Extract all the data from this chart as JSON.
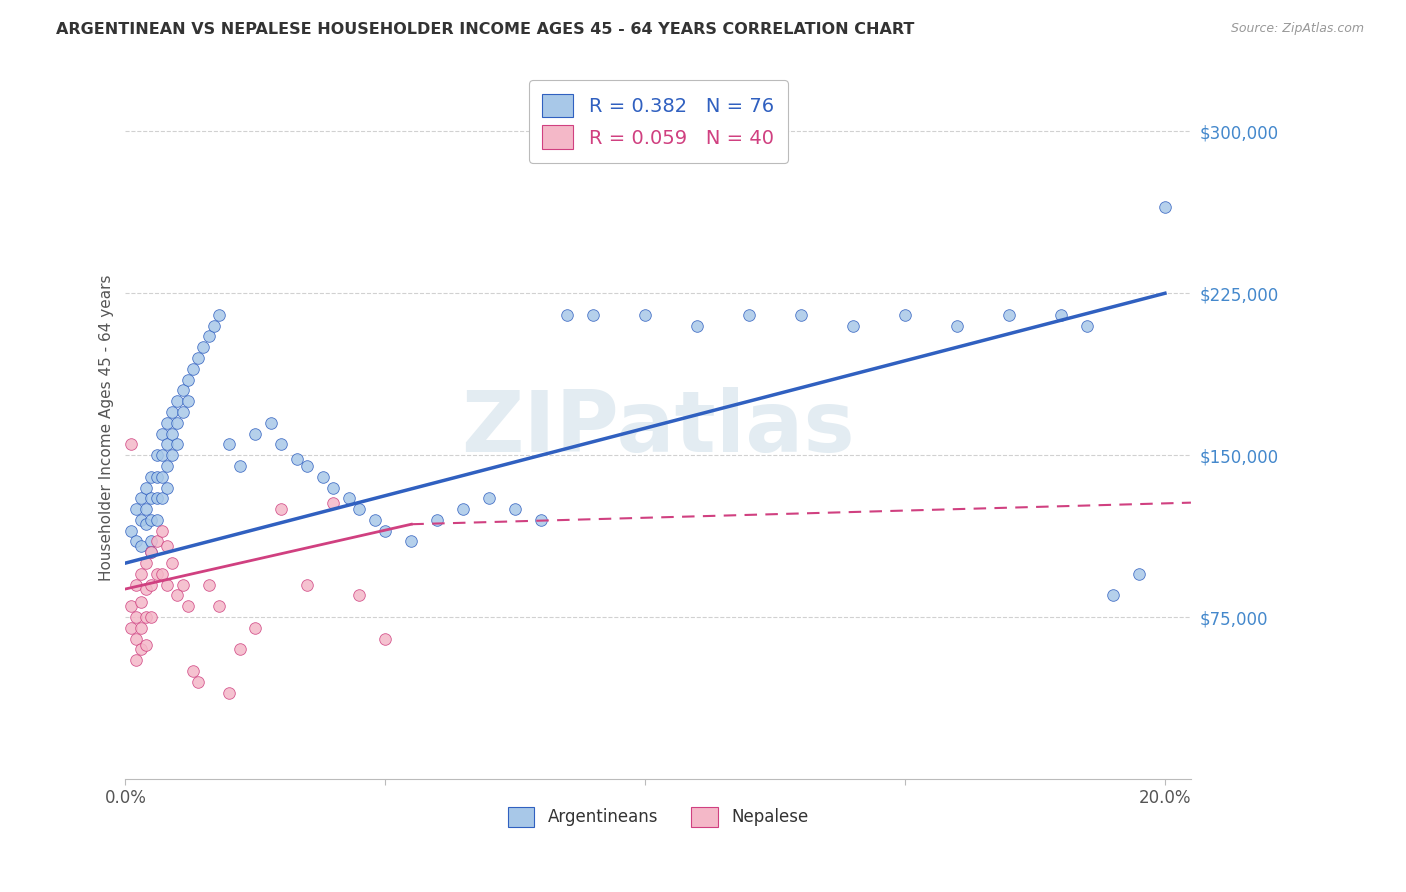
{
  "title": "ARGENTINEAN VS NEPALESE HOUSEHOLDER INCOME AGES 45 - 64 YEARS CORRELATION CHART",
  "source": "Source: ZipAtlas.com",
  "ylabel": "Householder Income Ages 45 - 64 years",
  "xlim": [
    0.0,
    0.205
  ],
  "ylim": [
    0,
    325000
  ],
  "ytick_positions": [
    75000,
    150000,
    225000,
    300000
  ],
  "ytick_labels": [
    "$75,000",
    "$150,000",
    "$225,000",
    "$300,000"
  ],
  "watermark": "ZIPatlas",
  "argentinean_color": "#a8c8e8",
  "nepalese_color": "#f4b8c8",
  "line_color_arg": "#3060c0",
  "line_color_nep": "#d04080",
  "R_arg": 0.382,
  "N_arg": 76,
  "R_nep": 0.059,
  "N_nep": 40,
  "arg_x": [
    0.001,
    0.002,
    0.002,
    0.003,
    0.003,
    0.003,
    0.004,
    0.004,
    0.004,
    0.005,
    0.005,
    0.005,
    0.005,
    0.005,
    0.006,
    0.006,
    0.006,
    0.006,
    0.007,
    0.007,
    0.007,
    0.007,
    0.008,
    0.008,
    0.008,
    0.008,
    0.009,
    0.009,
    0.009,
    0.01,
    0.01,
    0.01,
    0.011,
    0.011,
    0.012,
    0.012,
    0.013,
    0.014,
    0.015,
    0.016,
    0.017,
    0.018,
    0.02,
    0.022,
    0.025,
    0.028,
    0.03,
    0.033,
    0.035,
    0.038,
    0.04,
    0.043,
    0.045,
    0.048,
    0.05,
    0.055,
    0.06,
    0.065,
    0.07,
    0.075,
    0.08,
    0.085,
    0.09,
    0.1,
    0.11,
    0.12,
    0.13,
    0.14,
    0.15,
    0.16,
    0.17,
    0.18,
    0.185,
    0.19,
    0.195,
    0.2
  ],
  "arg_y": [
    115000,
    125000,
    110000,
    130000,
    120000,
    108000,
    135000,
    125000,
    118000,
    140000,
    130000,
    120000,
    110000,
    105000,
    150000,
    140000,
    130000,
    120000,
    160000,
    150000,
    140000,
    130000,
    165000,
    155000,
    145000,
    135000,
    170000,
    160000,
    150000,
    175000,
    165000,
    155000,
    180000,
    170000,
    185000,
    175000,
    190000,
    195000,
    200000,
    205000,
    210000,
    215000,
    155000,
    145000,
    160000,
    165000,
    155000,
    148000,
    145000,
    140000,
    135000,
    130000,
    125000,
    120000,
    115000,
    110000,
    120000,
    125000,
    130000,
    125000,
    120000,
    215000,
    215000,
    215000,
    210000,
    215000,
    215000,
    210000,
    215000,
    210000,
    215000,
    215000,
    210000,
    85000,
    95000,
    265000
  ],
  "nep_x": [
    0.001,
    0.001,
    0.001,
    0.002,
    0.002,
    0.002,
    0.002,
    0.003,
    0.003,
    0.003,
    0.003,
    0.004,
    0.004,
    0.004,
    0.004,
    0.005,
    0.005,
    0.005,
    0.006,
    0.006,
    0.007,
    0.007,
    0.008,
    0.008,
    0.009,
    0.01,
    0.011,
    0.012,
    0.013,
    0.014,
    0.016,
    0.018,
    0.02,
    0.022,
    0.025,
    0.03,
    0.035,
    0.04,
    0.045,
    0.05
  ],
  "nep_y": [
    155000,
    80000,
    70000,
    90000,
    75000,
    65000,
    55000,
    95000,
    82000,
    70000,
    60000,
    100000,
    88000,
    75000,
    62000,
    105000,
    90000,
    75000,
    110000,
    95000,
    115000,
    95000,
    108000,
    90000,
    100000,
    85000,
    90000,
    80000,
    50000,
    45000,
    90000,
    80000,
    40000,
    60000,
    70000,
    125000,
    90000,
    128000,
    85000,
    65000
  ],
  "line_arg_x0": 0.0,
  "line_arg_y0": 100000,
  "line_arg_x1": 0.2,
  "line_arg_y1": 225000,
  "line_nep_x0": 0.0,
  "line_nep_y0": 88000,
  "line_nep_x1": 0.055,
  "line_nep_y1": 118000,
  "line_nep_dash_x0": 0.055,
  "line_nep_dash_y0": 118000,
  "line_nep_dash_x1": 0.205,
  "line_nep_dash_y1": 128000
}
